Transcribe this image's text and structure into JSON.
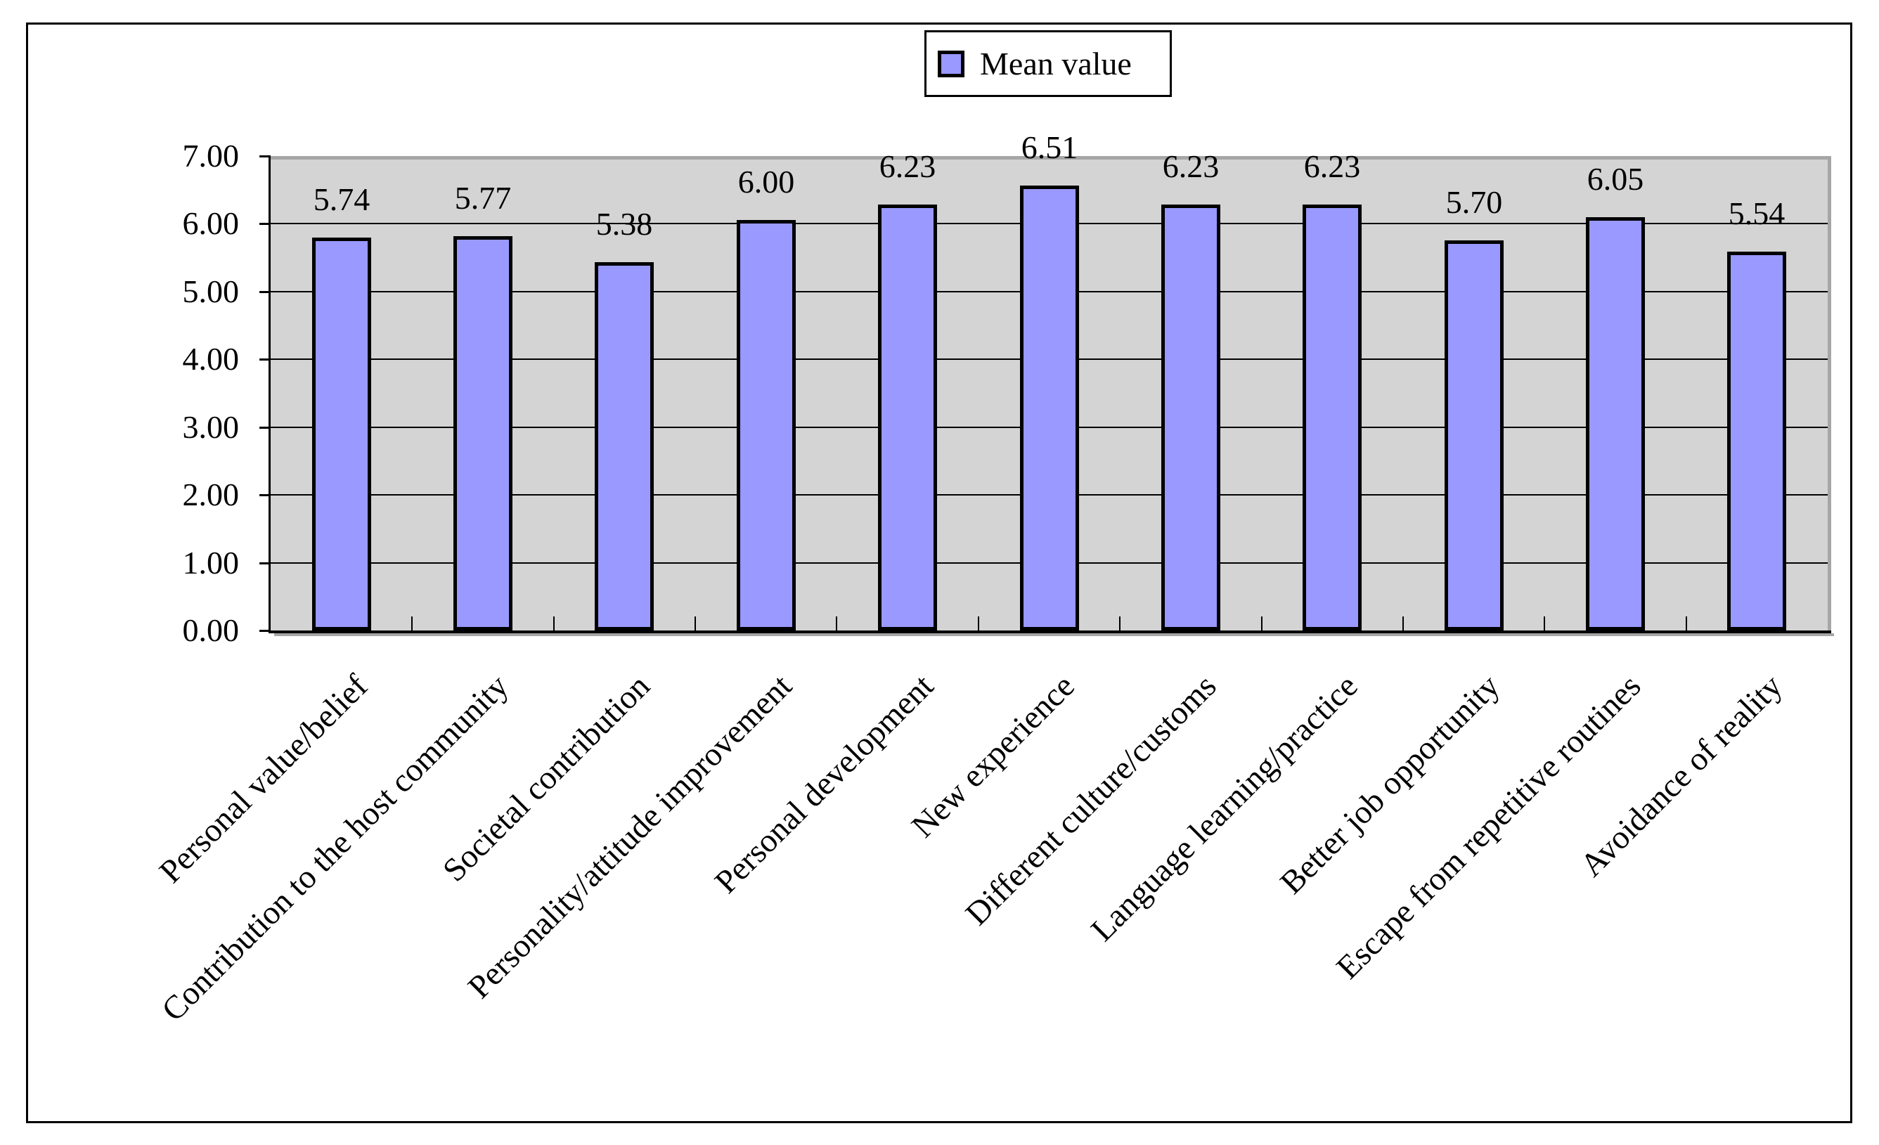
{
  "legend": {
    "label": "Mean value"
  },
  "y_axis": {
    "tick_labels": [
      "0.00",
      "1.00",
      "2.00",
      "3.00",
      "4.00",
      "5.00",
      "6.00",
      "7.00"
    ]
  },
  "chart_data": {
    "type": "bar",
    "title": "",
    "categories": [
      "Personal value/belief",
      "Contribution to the host community",
      "Societal contribution",
      "Personality/attitude improvement",
      "Personal development",
      "New experience",
      "Different culture/customs",
      "Language learning/practice",
      "Better job opportunity",
      "Escape from repetitive routines",
      "Avoidance of reality"
    ],
    "series": [
      {
        "name": "Mean value",
        "values": [
          5.74,
          5.77,
          5.38,
          6.0,
          6.23,
          6.51,
          6.23,
          6.23,
          5.7,
          6.05,
          5.54
        ]
      }
    ],
    "data_labels": [
      "5.74",
      "5.77",
      "5.38",
      "6.00",
      "6.23",
      "6.51",
      "6.23",
      "6.23",
      "5.70",
      "6.05",
      "5.54"
    ],
    "ylim": [
      0,
      7
    ],
    "y_tick_step": 1,
    "grid": true,
    "legend_position": "top-center",
    "plot_bg": "#D4D4D4",
    "bar_fill": "#9999FF",
    "bar_border": "#000000",
    "gridline_color": "#000000",
    "axis_color": "#000000",
    "plot_border_color": "#A6A6A6"
  }
}
